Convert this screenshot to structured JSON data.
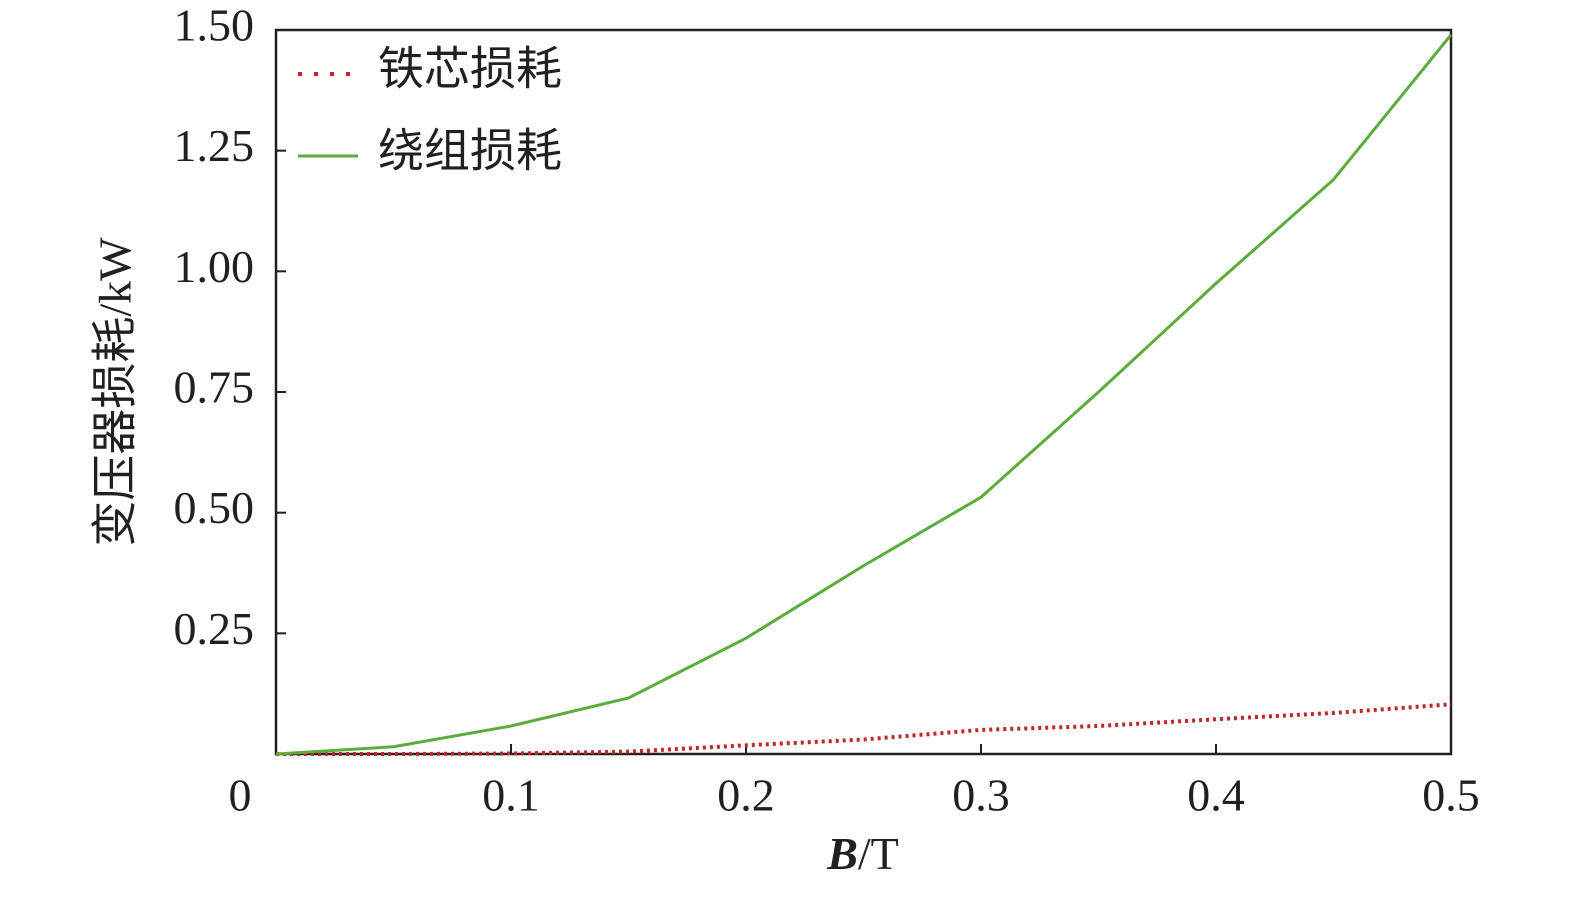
{
  "chart_data": {
    "type": "line",
    "x_label_var": "B",
    "x_label_unit": "/T",
    "y_label": "变压器损耗/kW",
    "x": [
      0,
      0.05,
      0.1,
      0.15,
      0.2,
      0.25,
      0.3,
      0.35,
      0.4,
      0.45,
      0.5
    ],
    "series": [
      {
        "name": "铁芯损耗",
        "color": "#c0272d",
        "dash": "dotted",
        "values": [
          0,
          0,
          0.001,
          0.005,
          0.018,
          0.03,
          0.05,
          0.058,
          0.072,
          0.085,
          0.103
        ]
      },
      {
        "name": "绕组损耗",
        "color": "#5aad3a",
        "dash": "solid",
        "values": [
          0,
          0.015,
          0.058,
          0.116,
          0.24,
          0.39,
          0.532,
          0.75,
          0.975,
          1.19,
          1.49
        ]
      }
    ],
    "xlim": [
      0,
      0.5
    ],
    "xticks": [
      0,
      0.1,
      0.2,
      0.3,
      0.4,
      0.5
    ],
    "ylim": [
      0,
      1.5
    ],
    "yticks": [
      0.25,
      {
        "value": 0.5,
        "label": "0.50"
      },
      0.75,
      {
        "value": 1,
        "label": "1.00"
      },
      1.25,
      {
        "value": 1.5,
        "label": "1.50"
      }
    ],
    "legend": "upper-left",
    "grid": false
  }
}
